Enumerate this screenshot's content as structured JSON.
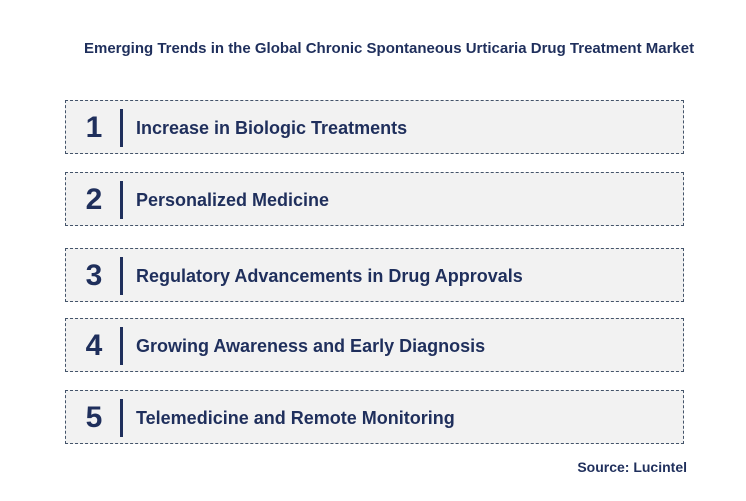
{
  "title": "Emerging Trends in the Global Chronic Spontaneous Urticaria Drug Treatment Market",
  "trends": [
    {
      "number": "1",
      "label": "Increase in Biologic Treatments"
    },
    {
      "number": "2",
      "label": "Personalized Medicine"
    },
    {
      "number": "3",
      "label": "Regulatory Advancements in Drug Approvals"
    },
    {
      "number": "4",
      "label": "Growing Awareness and Early Diagnosis"
    },
    {
      "number": "5",
      "label": "Telemedicine and Remote Monitoring"
    }
  ],
  "source": "Source: Lucintel"
}
